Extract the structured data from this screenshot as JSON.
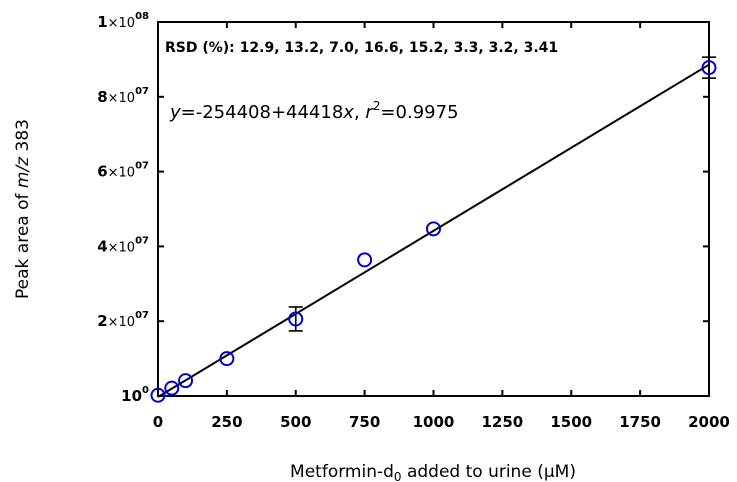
{
  "chart_data": {
    "type": "scatter",
    "xlabel": "Metformin-d",
    "xlabel_sub": "0",
    "xlabel_rest": " added to urine (µM)",
    "ylabel_prefix": "Peak area of ",
    "ylabel_italic": "m/z",
    "ylabel_suffix": " 383",
    "xlim": [
      0,
      2000
    ],
    "ylim": [
      0,
      100000000
    ],
    "x_ticks": [
      0,
      250,
      500,
      750,
      1000,
      1250,
      1500,
      1750,
      2000
    ],
    "x_tick_labels": [
      "0",
      "250",
      "500",
      "750",
      "1000",
      "1250",
      "1500",
      "1750",
      "2000"
    ],
    "y_ticks": [
      {
        "value": 0,
        "mantissa": "10",
        "exponent": "0",
        "times": false
      },
      {
        "value": 20000000,
        "mantissa": "2",
        "exponent": "07",
        "times": true
      },
      {
        "value": 40000000,
        "mantissa": "4",
        "exponent": "07",
        "times": true
      },
      {
        "value": 60000000,
        "mantissa": "6",
        "exponent": "07",
        "times": true
      },
      {
        "value": 80000000,
        "mantissa": "8",
        "exponent": "07",
        "times": true
      },
      {
        "value": 100000000,
        "mantissa": "1",
        "exponent": "08",
        "times": true
      }
    ],
    "series": [
      {
        "x": [
          0,
          50,
          100,
          250,
          500,
          750,
          1000,
          2000
        ],
        "y": [
          200000,
          2100000,
          4100000,
          10000000,
          20600000,
          36400000,
          44700000,
          87800000
        ],
        "y_err": [
          0,
          0,
          0,
          0,
          3200000,
          0,
          0,
          2800000
        ],
        "marker": "open-circle",
        "color": "#0000cc"
      }
    ],
    "fit": {
      "intercept": -254408,
      "slope": 44418,
      "x_range": [
        0,
        2000
      ],
      "color": "#000000"
    },
    "annotations": {
      "rsd": "RSD (%): 12.9, 13.2, 7.0, 16.6, 15.2, 3.3, 3.2, 3.41",
      "eq_y": "y",
      "eq_body": "=-254408+44418",
      "eq_x": "x",
      "eq_sep": ", ",
      "eq_r": "r",
      "eq_r_sup": "2",
      "eq_r_val": "=0.9975"
    },
    "grid": false
  }
}
